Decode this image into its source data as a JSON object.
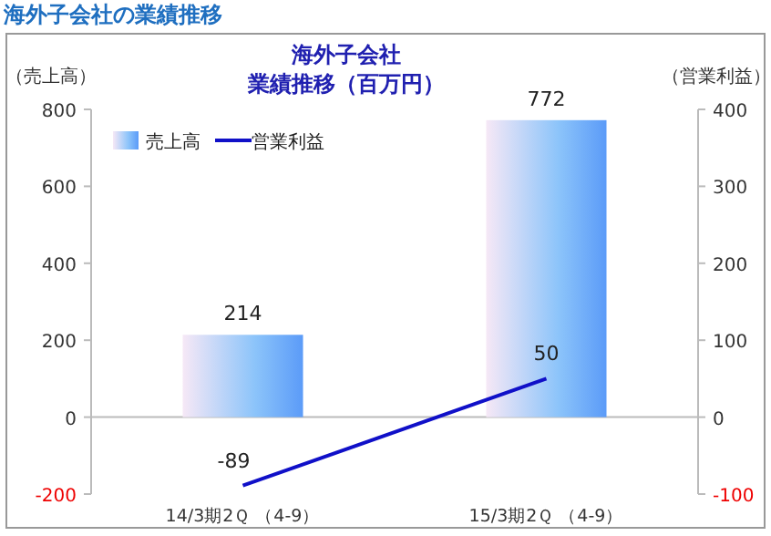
{
  "chart_data": {
    "type": "bar",
    "title": "海外子会社",
    "subtitle": "業績推移（百万円）",
    "ylabel": "（売上高）",
    "y2label": "（営業利益）",
    "annotations": [
      "海外子会社の業績推移"
    ],
    "categories": [
      "14/3期2Ｑ （4-9）",
      "15/3期2Ｑ （4-9）"
    ],
    "series": [
      {
        "name": "売上高",
        "color": "#5b9bf8",
        "values": [
          214,
          772
        ]
      },
      {
        "name": "営業利益",
        "type": "line",
        "axis": "y2",
        "color": "#1010c8",
        "values": [
          -89,
          50
        ]
      }
    ],
    "data_labels": true,
    "legend": "top left",
    "ylim": [
      -200,
      800
    ],
    "yticks": [
      -200,
      0,
      200,
      400,
      600,
      800
    ],
    "y2lim": [
      -100,
      400
    ],
    "y2ticks": [
      -100,
      0,
      100,
      200,
      300,
      400
    ]
  }
}
